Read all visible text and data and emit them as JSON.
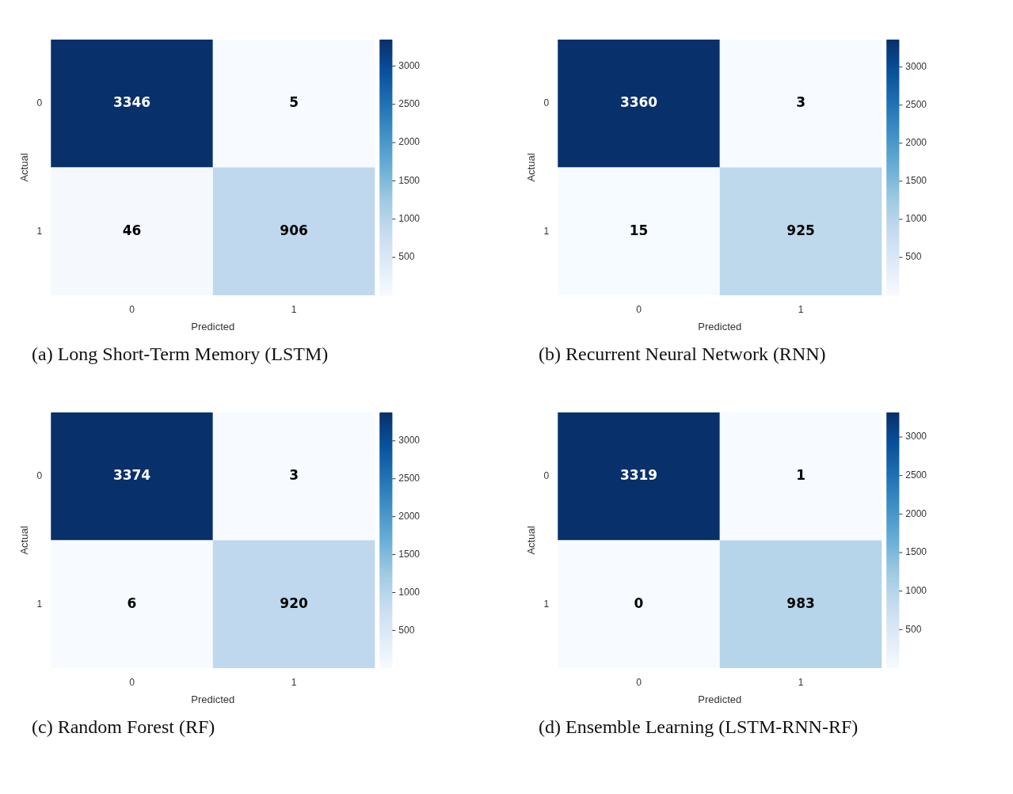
{
  "chart_data": [
    {
      "type": "heatmap",
      "title": "(a)  Long Short-Term Memory (LSTM)",
      "xlabel": "Predicted",
      "ylabel": "Actual",
      "categories": [
        "0",
        "1"
      ],
      "y_categories": [
        "0",
        "1"
      ],
      "cells": [
        [
          3346,
          5
        ],
        [
          46,
          906
        ]
      ],
      "clim": [
        5,
        3346
      ],
      "cticks": [
        500,
        1000,
        1500,
        2000,
        2500,
        3000
      ],
      "data_labels": true
    },
    {
      "type": "heatmap",
      "title": "(b) Recurrent Neural Network (RNN)",
      "xlabel": "Predicted",
      "ylabel": "Actual",
      "categories": [
        "0",
        "1"
      ],
      "y_categories": [
        "0",
        "1"
      ],
      "cells": [
        [
          3360,
          3
        ],
        [
          15,
          925
        ]
      ],
      "clim": [
        3,
        3360
      ],
      "cticks": [
        500,
        1000,
        1500,
        2000,
        2500,
        3000
      ],
      "data_labels": true
    },
    {
      "type": "heatmap",
      "title": "(c) Random Forest (RF)",
      "xlabel": "Predicted",
      "ylabel": "Actual",
      "categories": [
        "0",
        "1"
      ],
      "y_categories": [
        "0",
        "1"
      ],
      "cells": [
        [
          3374,
          3
        ],
        [
          6,
          920
        ]
      ],
      "clim": [
        3,
        3374
      ],
      "cticks": [
        500,
        1000,
        1500,
        2000,
        2500,
        3000
      ],
      "data_labels": true
    },
    {
      "type": "heatmap",
      "title": "(d) Ensemble Learning (LSTM-RNN-RF)",
      "xlabel": "Predicted",
      "ylabel": "Actual",
      "categories": [
        "0",
        "1"
      ],
      "y_categories": [
        "0",
        "1"
      ],
      "cells": [
        [
          3319,
          1
        ],
        [
          0,
          983
        ]
      ],
      "clim": [
        0,
        3319
      ],
      "cticks": [
        500,
        1000,
        1500,
        2000,
        2500,
        3000
      ],
      "data_labels": true
    }
  ]
}
